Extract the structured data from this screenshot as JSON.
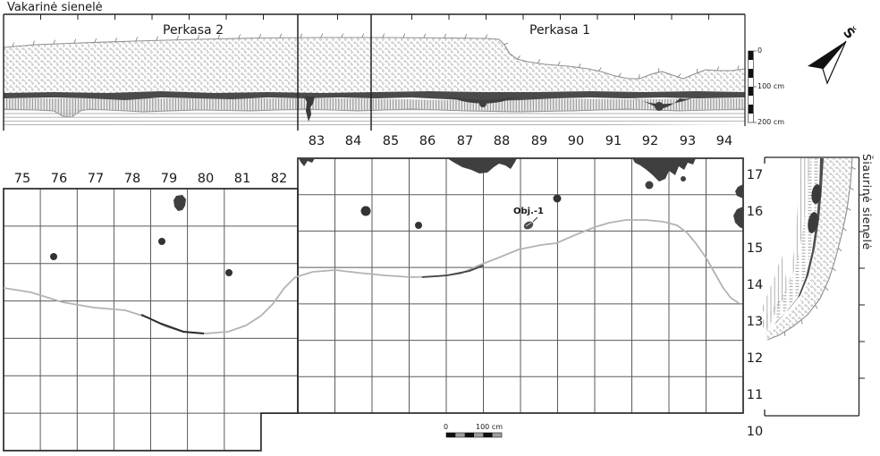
{
  "labels": {
    "west_wall": "Vakarinė sienelė",
    "north_wall": "Šiaurinė sienelė",
    "trench2": "Perkasa 2",
    "trench1": "Perkasa 1",
    "object1": "Obj.-1",
    "north": "Š"
  },
  "grid": {
    "left_columns": [
      "75",
      "76",
      "77",
      "78",
      "79",
      "80",
      "81",
      "82"
    ],
    "mid_columns": [
      "83",
      "84",
      "85",
      "86",
      "87",
      "88",
      "89",
      "90",
      "91",
      "92",
      "93",
      "94"
    ],
    "rows": [
      "17",
      "16",
      "15",
      "14",
      "13",
      "12",
      "11",
      "10"
    ]
  },
  "profile_scale": {
    "zero": "0",
    "one_hundred": "100 cm",
    "two_hundred": "200 cm"
  },
  "plan_scale": {
    "zero": "0",
    "one_hundred": "100 cm"
  },
  "colors": {
    "dark_feature": "#3f3f3f",
    "dark_layer": "#4a4a4a",
    "limit_line": "#b3b3b3"
  }
}
